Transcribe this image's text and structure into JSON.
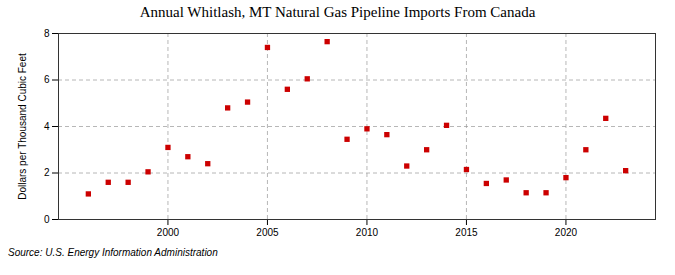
{
  "chart_data": {
    "type": "scatter",
    "title": "Annual Whitlash, MT Natural Gas Pipeline Imports From Canada",
    "ylabel": "Dollars per Thousand Cubic Feet",
    "source": "Source: U.S. Energy Information Administration",
    "x": [
      1996,
      1997,
      1998,
      1999,
      2000,
      2001,
      2002,
      2003,
      2004,
      2005,
      2006,
      2007,
      2008,
      2009,
      2010,
      2011,
      2012,
      2013,
      2014,
      2015,
      2016,
      2017,
      2018,
      2019,
      2020,
      2021,
      2022,
      2023
    ],
    "values": [
      1.1,
      1.6,
      1.6,
      2.05,
      3.1,
      2.7,
      2.4,
      4.8,
      5.05,
      7.4,
      5.6,
      6.05,
      7.65,
      3.45,
      3.9,
      3.65,
      2.3,
      3.0,
      4.05,
      2.15,
      1.55,
      1.7,
      1.15,
      1.15,
      1.8,
      3.0,
      4.35,
      2.1
    ],
    "color": "#cc0000",
    "marker": "square",
    "xlim": [
      1994.5,
      2024.5
    ],
    "xticks": [
      2000,
      2005,
      2010,
      2015,
      2020
    ],
    "ylim": [
      0,
      8
    ],
    "yticks": [
      0,
      2,
      4,
      6,
      8
    ],
    "grid": true
  }
}
